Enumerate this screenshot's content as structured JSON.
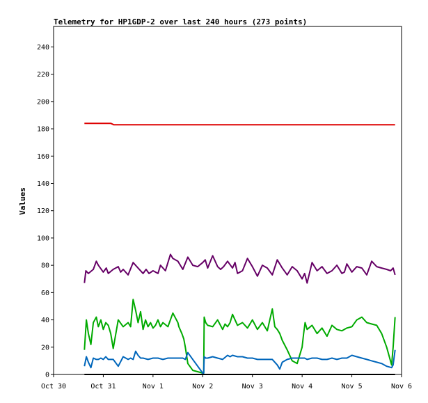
{
  "chart_data": {
    "type": "line",
    "title": "Telemetry for HP1GDP-2 over last 240 hours (273 points)",
    "xlabel": "",
    "ylabel": "Values",
    "ylim": [
      0,
      255
    ],
    "yticks": [
      0,
      20,
      40,
      60,
      80,
      100,
      120,
      140,
      160,
      180,
      200,
      220,
      240
    ],
    "xlim": [
      0,
      7.0
    ],
    "xtick_labels": [
      "Oct 30",
      "Oct 31",
      "Nov 1",
      "Nov 2",
      "Nov 3",
      "Nov 4",
      "Nov 5",
      "Nov 6"
    ],
    "x_unit": "days since Oct 30 00:00",
    "grid": false,
    "legend": "none",
    "series": [
      {
        "color": "#dd0000",
        "x": [
          0.62,
          0.8,
          1.0,
          1.15,
          1.21,
          1.5,
          1.61,
          1.7,
          1.9,
          1.93,
          2.0,
          2.5,
          3.0,
          3.5,
          4.0,
          4.5,
          5.0,
          5.5,
          6.0,
          6.5,
          6.87
        ],
        "y": [
          184,
          184,
          184,
          184,
          183,
          183,
          183,
          183,
          183,
          183,
          183,
          183,
          183,
          183,
          183,
          183,
          183,
          183,
          183,
          183,
          183
        ]
      },
      {
        "color": "#660066",
        "x": [
          0.62,
          0.65,
          0.7,
          0.8,
          0.86,
          0.9,
          1.0,
          1.06,
          1.1,
          1.2,
          1.3,
          1.35,
          1.4,
          1.5,
          1.6,
          1.7,
          1.8,
          1.86,
          1.92,
          2.0,
          2.1,
          2.15,
          2.25,
          2.35,
          2.4,
          2.5,
          2.6,
          2.7,
          2.8,
          2.9,
          3.0,
          3.05,
          3.1,
          3.2,
          3.3,
          3.36,
          3.42,
          3.5,
          3.6,
          3.65,
          3.7,
          3.8,
          3.9,
          4.0,
          4.1,
          4.2,
          4.3,
          4.4,
          4.5,
          4.55,
          4.6,
          4.7,
          4.8,
          4.9,
          5.0,
          5.05,
          5.1,
          5.2,
          5.3,
          5.4,
          5.5,
          5.6,
          5.7,
          5.8,
          5.85,
          5.9,
          6.0,
          6.1,
          6.2,
          6.3,
          6.4,
          6.5,
          6.6,
          6.7,
          6.78,
          6.83,
          6.87
        ],
        "y": [
          67,
          76,
          74,
          77,
          83,
          80,
          75,
          78,
          74,
          77,
          79,
          75,
          77,
          73,
          82,
          78,
          74,
          77,
          74,
          76,
          74,
          80,
          76,
          88,
          85,
          83,
          77,
          86,
          80,
          79,
          82,
          84,
          78,
          87,
          79,
          77,
          79,
          83,
          78,
          82,
          74,
          76,
          85,
          79,
          72,
          80,
          78,
          73,
          84,
          81,
          78,
          73,
          79,
          76,
          70,
          74,
          67,
          82,
          76,
          79,
          74,
          76,
          80,
          74,
          75,
          81,
          75,
          79,
          78,
          73,
          83,
          79,
          78,
          77,
          76,
          78,
          73
        ]
      },
      {
        "color": "#00aa00",
        "x": [
          0.62,
          0.66,
          0.7,
          0.75,
          0.8,
          0.86,
          0.9,
          0.95,
          1.0,
          1.05,
          1.1,
          1.15,
          1.2,
          1.3,
          1.4,
          1.5,
          1.55,
          1.6,
          1.65,
          1.7,
          1.75,
          1.8,
          1.85,
          1.9,
          1.95,
          2.0,
          2.05,
          2.1,
          2.15,
          2.2,
          2.3,
          2.4,
          2.5,
          2.52,
          2.58,
          2.62,
          2.65,
          2.7,
          2.8,
          3.0,
          3.02,
          3.03,
          3.06,
          3.1,
          3.2,
          3.3,
          3.4,
          3.45,
          3.5,
          3.55,
          3.6,
          3.7,
          3.8,
          3.9,
          4.0,
          4.1,
          4.2,
          4.3,
          4.4,
          4.45,
          4.5,
          4.55,
          4.6,
          4.7,
          4.8,
          4.9,
          5.0,
          5.03,
          5.06,
          5.1,
          5.2,
          5.3,
          5.4,
          5.5,
          5.6,
          5.7,
          5.8,
          5.9,
          6.0,
          6.1,
          6.2,
          6.3,
          6.4,
          6.5,
          6.6,
          6.7,
          6.8,
          6.83,
          6.87
        ],
        "y": [
          18,
          40,
          30,
          22,
          38,
          42,
          35,
          40,
          33,
          38,
          36,
          30,
          19,
          40,
          35,
          38,
          35,
          55,
          47,
          38,
          46,
          33,
          40,
          35,
          38,
          34,
          36,
          40,
          35,
          38,
          35,
          45,
          38,
          35,
          30,
          26,
          20,
          8,
          3,
          1,
          1,
          42,
          38,
          36,
          35,
          40,
          33,
          37,
          35,
          38,
          44,
          36,
          38,
          34,
          40,
          33,
          38,
          32,
          48,
          35,
          33,
          30,
          25,
          18,
          10,
          8,
          20,
          30,
          38,
          33,
          36,
          30,
          34,
          28,
          36,
          33,
          32,
          34,
          35,
          40,
          42,
          38,
          37,
          36,
          30,
          20,
          7,
          20,
          42
        ]
      },
      {
        "color": "#0066bb",
        "x": [
          0.62,
          0.66,
          0.7,
          0.75,
          0.8,
          0.86,
          0.9,
          0.95,
          1.0,
          1.05,
          1.1,
          1.2,
          1.3,
          1.4,
          1.5,
          1.55,
          1.6,
          1.65,
          1.7,
          1.75,
          1.8,
          1.9,
          2.0,
          2.1,
          2.2,
          2.3,
          2.4,
          2.5,
          2.6,
          2.65,
          2.7,
          2.8,
          3.0,
          3.02,
          3.03,
          3.06,
          3.1,
          3.2,
          3.3,
          3.4,
          3.5,
          3.55,
          3.6,
          3.7,
          3.8,
          3.9,
          4.0,
          4.1,
          4.2,
          4.3,
          4.4,
          4.45,
          4.5,
          4.55,
          4.6,
          4.7,
          4.8,
          4.9,
          5.0,
          5.05,
          5.1,
          5.2,
          5.3,
          5.4,
          5.5,
          5.6,
          5.7,
          5.8,
          5.9,
          6.0,
          6.1,
          6.2,
          6.3,
          6.4,
          6.5,
          6.6,
          6.7,
          6.8,
          6.83,
          6.87
        ],
        "y": [
          6,
          13,
          9,
          5,
          12,
          11,
          11,
          12,
          11,
          13,
          11,
          11,
          6,
          13,
          11,
          12,
          11,
          17,
          14,
          12,
          12,
          11,
          12,
          12,
          11,
          12,
          12,
          12,
          12,
          11,
          16,
          11,
          1,
          1,
          13,
          12,
          12,
          13,
          12,
          11,
          14,
          13,
          14,
          13,
          13,
          12,
          12,
          11,
          11,
          11,
          11,
          9,
          7,
          4,
          9,
          11,
          12,
          12,
          12,
          12,
          11,
          12,
          12,
          11,
          11,
          12,
          11,
          12,
          12,
          14,
          13,
          12,
          11,
          10,
          9,
          8,
          6,
          5,
          7,
          18
        ]
      },
      {
        "color": "#000000",
        "x": [
          0.62,
          6.87
        ],
        "y": [
          0,
          0
        ]
      }
    ]
  }
}
